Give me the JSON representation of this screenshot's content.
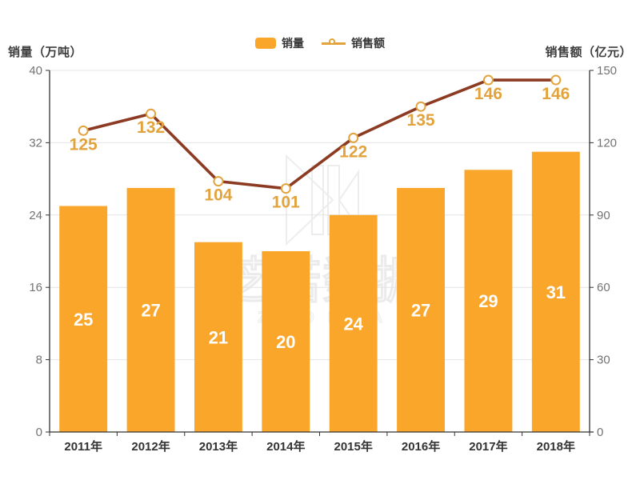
{
  "chart_data": {
    "type": "bar+line combo, dual y-axes",
    "categories": [
      "2011年",
      "2012年",
      "2013年",
      "2014年",
      "2015年",
      "2016年",
      "2017年",
      "2018年"
    ],
    "series": [
      {
        "name": "销量",
        "type": "bar",
        "axis": "left",
        "values": [
          25,
          27,
          21,
          20,
          24,
          27,
          29,
          31
        ],
        "color": "#F9A62B",
        "label_color": "#ffffff"
      },
      {
        "name": "销售额",
        "type": "line",
        "axis": "right",
        "values": [
          125,
          132,
          104,
          101,
          122,
          135,
          146,
          146
        ],
        "color": "#8C3B22",
        "marker_fill": "#ffffff",
        "marker_stroke": "#E2A33C",
        "label_color": "#E2A33C"
      }
    ],
    "left_axis": {
      "title": "销量（万吨）",
      "ticks": [
        0,
        8,
        16,
        24,
        32,
        40
      ],
      "min": 0,
      "max": 40
    },
    "right_axis": {
      "title": "销售额（亿元）",
      "ticks": [
        0,
        30,
        60,
        90,
        120,
        150
      ],
      "min": 0,
      "max": 150
    },
    "legend": [
      "销量",
      "销售额"
    ],
    "legend_position": "top-center",
    "grid": true
  },
  "watermark": {
    "text": "芝诺数据",
    "subtext": "ZENO DATA"
  },
  "colors": {
    "bar": "#F9A62B",
    "line": "#8C3B22",
    "gold": "#E2A33C",
    "axis_line": "#333333",
    "tick_label": "#737373",
    "x_label": "#333333",
    "gridline": "#E4E4E4",
    "bar_label": "#ffffff",
    "watermark": "#ebebeb",
    "background": "#ffffff"
  }
}
